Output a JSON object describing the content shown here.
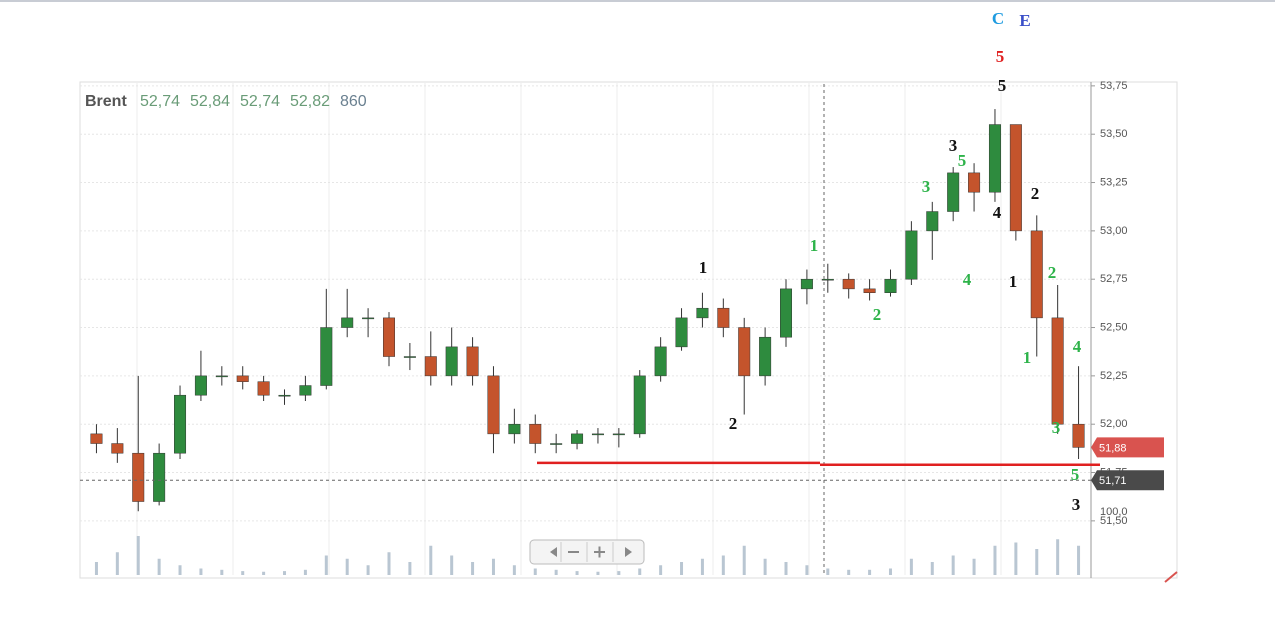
{
  "chart_data": {
    "type": "candlestick",
    "header": {
      "name": "Brent",
      "quotes": [
        "52,74",
        "52,84",
        "52,74",
        "52,82"
      ],
      "volume": "860"
    },
    "open": [
      51.95,
      51.9,
      51.85,
      51.6,
      51.85,
      52.15,
      52.25,
      52.25,
      52.22,
      52.15,
      52.15,
      52.2,
      52.5,
      52.55,
      52.55,
      52.35,
      52.35,
      52.25,
      52.4,
      52.25,
      51.95,
      52.0,
      51.9,
      51.9,
      51.95,
      51.95,
      51.95,
      52.25,
      52.4,
      52.55,
      52.6,
      52.5,
      52.25,
      52.45,
      52.7,
      52.75,
      52.75,
      52.7,
      52.68,
      52.75,
      53.0,
      53.1,
      53.3,
      53.2,
      53.55,
      53.0,
      52.55,
      52.0
    ],
    "high": [
      52.0,
      51.98,
      52.25,
      51.9,
      52.2,
      52.38,
      52.3,
      52.3,
      52.25,
      52.18,
      52.25,
      52.7,
      52.7,
      52.6,
      52.58,
      52.42,
      52.48,
      52.5,
      52.45,
      52.3,
      52.08,
      52.05,
      51.95,
      51.97,
      51.98,
      51.98,
      52.28,
      52.45,
      52.6,
      52.68,
      52.65,
      52.55,
      52.5,
      52.75,
      52.8,
      52.83,
      52.78,
      52.75,
      52.8,
      53.05,
      53.15,
      53.33,
      53.35,
      53.63,
      53.55,
      53.08,
      52.72,
      52.3
    ],
    "low": [
      51.85,
      51.8,
      51.55,
      51.58,
      51.82,
      52.12,
      52.2,
      52.18,
      52.12,
      52.1,
      52.12,
      52.18,
      52.45,
      52.45,
      52.3,
      52.28,
      52.2,
      52.2,
      52.2,
      51.85,
      51.9,
      51.85,
      51.85,
      51.87,
      51.9,
      51.88,
      51.93,
      52.22,
      52.38,
      52.5,
      52.45,
      52.05,
      52.2,
      52.4,
      52.62,
      52.68,
      52.65,
      52.64,
      52.66,
      52.72,
      52.85,
      53.05,
      53.1,
      53.15,
      52.95,
      52.35,
      51.95,
      51.82
    ],
    "close": [
      51.9,
      51.85,
      51.6,
      51.85,
      52.15,
      52.25,
      52.25,
      52.22,
      52.15,
      52.15,
      52.2,
      52.5,
      52.55,
      52.55,
      52.35,
      52.35,
      52.25,
      52.4,
      52.25,
      51.95,
      52.0,
      51.9,
      51.9,
      51.95,
      51.95,
      51.95,
      52.25,
      52.4,
      52.55,
      52.6,
      52.5,
      52.25,
      52.45,
      52.7,
      52.75,
      52.75,
      52.7,
      52.68,
      52.75,
      53.0,
      53.1,
      53.3,
      53.2,
      53.55,
      53.0,
      52.55,
      52.0,
      51.88
    ],
    "volume": [
      20,
      35,
      60,
      25,
      15,
      10,
      8,
      6,
      5,
      6,
      8,
      30,
      25,
      15,
      35,
      20,
      45,
      30,
      20,
      25,
      15,
      10,
      8,
      6,
      5,
      6,
      10,
      15,
      20,
      25,
      30,
      45,
      25,
      20,
      15,
      10,
      8,
      8,
      10,
      25,
      20,
      30,
      25,
      45,
      50,
      40,
      55,
      45
    ],
    "volume_ylim": [
      0,
      100
    ],
    "volume_tick": {
      "value": 100,
      "label": "100,0"
    },
    "up_color": "#2e8b3e",
    "down_color": "#c4542c",
    "ylim": [
      51.22,
      53.77
    ],
    "yticks": [
      {
        "value": 51.5,
        "label": "51,50"
      },
      {
        "value": 51.75,
        "label": "51,75"
      },
      {
        "value": 52,
        "label": "52,00"
      },
      {
        "value": 52.25,
        "label": "52,25"
      },
      {
        "value": 52.5,
        "label": "52,50"
      },
      {
        "value": 52.75,
        "label": "52,75"
      },
      {
        "value": 53,
        "label": "53,00"
      },
      {
        "value": 53.25,
        "label": "53,25"
      },
      {
        "value": 53.5,
        "label": "53,50"
      },
      {
        "value": 53.75,
        "label": "53,75"
      }
    ],
    "grid": true,
    "levels": [
      51.8,
      51.79
    ],
    "level_color": "#e02020",
    "price_tags": [
      {
        "value": 51.88,
        "label": "51,88",
        "color": "#d9534f"
      },
      {
        "value": 51.71,
        "label": "51,71",
        "color": "#4a4a4a"
      }
    ],
    "annotations": [
      {
        "text": "C",
        "color": "#1e9be0"
      },
      {
        "text": "E",
        "color": "#3a4fc8"
      },
      {
        "text": "5",
        "color": "#e02020"
      },
      {
        "text": "5",
        "color": "#111111"
      },
      {
        "text": "3",
        "color": "#111111"
      },
      {
        "text": "5",
        "color": "#2eb34a"
      },
      {
        "text": "3",
        "color": "#2eb34a"
      },
      {
        "text": "4",
        "color": "#111111"
      },
      {
        "text": "2",
        "color": "#111111"
      },
      {
        "text": "1",
        "color": "#2eb34a"
      },
      {
        "text": "1",
        "color": "#111111"
      },
      {
        "text": "4",
        "color": "#2eb34a"
      },
      {
        "text": "1",
        "color": "#111111"
      },
      {
        "text": "2",
        "color": "#2eb34a"
      },
      {
        "text": "2",
        "color": "#2eb34a"
      },
      {
        "text": "1",
        "color": "#2eb34a"
      },
      {
        "text": "4",
        "color": "#2eb34a"
      },
      {
        "text": "2",
        "color": "#111111"
      },
      {
        "text": "3",
        "color": "#2eb34a"
      },
      {
        "text": "5",
        "color": "#2eb34a"
      },
      {
        "text": "3",
        "color": "#111111"
      }
    ]
  }
}
